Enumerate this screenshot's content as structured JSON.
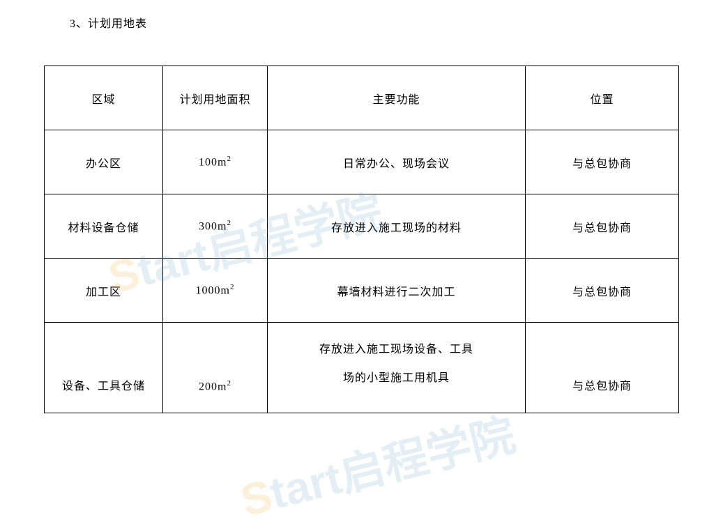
{
  "title": "3、计划用地表",
  "table": {
    "columns": [
      "区域",
      "计划用地面积",
      "主要功能",
      "位置"
    ],
    "rows": [
      {
        "area": "办公区",
        "size": "100m",
        "unit": "2",
        "func": "日常办公、现场会议",
        "loc": "与总包协商"
      },
      {
        "area": "材料设备仓储",
        "size": "300m",
        "unit": "2",
        "func": "存放进入施工现场的材料",
        "loc": "与总包协商"
      },
      {
        "area": "加工区",
        "size": "1000m",
        "unit": "2",
        "func": "幕墙材料进行二次加工",
        "loc": "与总包协商"
      },
      {
        "area": "设备、工具仓储",
        "size": "200m",
        "unit": "2",
        "func_l1": "存放进入施工现场设备、工具",
        "func_l2": "场的小型施工用机具",
        "loc": "与总包协商"
      }
    ]
  },
  "watermark": {
    "s": "S",
    "rest": "tart启程学院"
  }
}
